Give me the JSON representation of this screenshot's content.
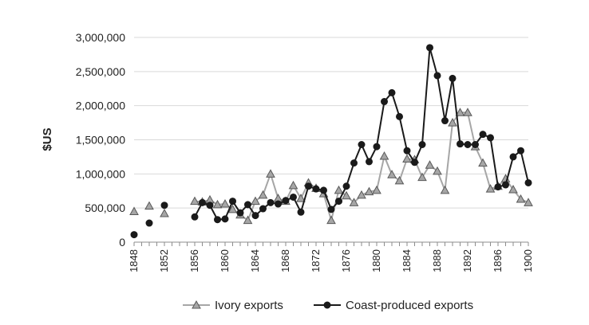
{
  "chart_data": {
    "type": "line",
    "title": "",
    "xlabel": "",
    "ylabel": "$US",
    "xlim": [
      1848,
      1900
    ],
    "ylim": [
      0,
      3000000
    ],
    "x_ticks": [
      1848,
      1852,
      1856,
      1860,
      1864,
      1868,
      1872,
      1876,
      1880,
      1884,
      1888,
      1892,
      1896,
      1900
    ],
    "y_ticks": [
      0,
      500000,
      1000000,
      1500000,
      2000000,
      2500000,
      3000000
    ],
    "y_tick_labels": [
      "0",
      "500,000",
      "1,000,000",
      "1,500,000",
      "2,000,000",
      "2,500,000",
      "3,000,000"
    ],
    "grid": "horizontal",
    "legend_position": "bottom",
    "series": [
      {
        "name": "Ivory exports",
        "color": "#a6a6a6",
        "marker": "triangle",
        "points": [
          [
            1848,
            450000
          ],
          [
            1850,
            530000
          ],
          [
            1852,
            420000
          ],
          [
            1856,
            600000
          ],
          [
            1857,
            590000
          ],
          [
            1858,
            620000
          ],
          [
            1859,
            550000
          ],
          [
            1860,
            560000
          ],
          [
            1861,
            480000
          ],
          [
            1862,
            400000
          ],
          [
            1863,
            320000
          ],
          [
            1864,
            600000
          ],
          [
            1865,
            690000
          ],
          [
            1866,
            1000000
          ],
          [
            1867,
            640000
          ],
          [
            1868,
            600000
          ],
          [
            1869,
            830000
          ],
          [
            1870,
            640000
          ],
          [
            1871,
            870000
          ],
          [
            1872,
            790000
          ],
          [
            1873,
            710000
          ],
          [
            1874,
            320000
          ],
          [
            1875,
            760000
          ],
          [
            1876,
            680000
          ],
          [
            1877,
            580000
          ],
          [
            1878,
            690000
          ],
          [
            1879,
            740000
          ],
          [
            1880,
            760000
          ],
          [
            1881,
            1260000
          ],
          [
            1882,
            990000
          ],
          [
            1883,
            900000
          ],
          [
            1884,
            1220000
          ],
          [
            1885,
            1210000
          ],
          [
            1886,
            950000
          ],
          [
            1887,
            1130000
          ],
          [
            1888,
            1040000
          ],
          [
            1889,
            760000
          ],
          [
            1890,
            1750000
          ],
          [
            1891,
            1900000
          ],
          [
            1892,
            1900000
          ],
          [
            1893,
            1400000
          ],
          [
            1894,
            1160000
          ],
          [
            1895,
            780000
          ],
          [
            1896,
            820000
          ],
          [
            1897,
            930000
          ],
          [
            1898,
            770000
          ],
          [
            1899,
            630000
          ],
          [
            1900,
            580000
          ]
        ]
      },
      {
        "name": "Coast-produced exports",
        "color": "#1a1a1a",
        "marker": "circle",
        "points": [
          [
            1848,
            110000
          ],
          [
            1850,
            280000
          ],
          [
            1852,
            540000
          ],
          [
            1856,
            370000
          ],
          [
            1857,
            580000
          ],
          [
            1858,
            540000
          ],
          [
            1859,
            330000
          ],
          [
            1860,
            340000
          ],
          [
            1861,
            600000
          ],
          [
            1862,
            430000
          ],
          [
            1863,
            550000
          ],
          [
            1864,
            390000
          ],
          [
            1865,
            490000
          ],
          [
            1866,
            580000
          ],
          [
            1867,
            560000
          ],
          [
            1868,
            610000
          ],
          [
            1869,
            660000
          ],
          [
            1870,
            440000
          ],
          [
            1871,
            820000
          ],
          [
            1872,
            780000
          ],
          [
            1873,
            760000
          ],
          [
            1874,
            480000
          ],
          [
            1875,
            600000
          ],
          [
            1876,
            820000
          ],
          [
            1877,
            1160000
          ],
          [
            1878,
            1430000
          ],
          [
            1879,
            1180000
          ],
          [
            1880,
            1400000
          ],
          [
            1881,
            2060000
          ],
          [
            1882,
            2190000
          ],
          [
            1883,
            1840000
          ],
          [
            1884,
            1340000
          ],
          [
            1885,
            1170000
          ],
          [
            1886,
            1430000
          ],
          [
            1887,
            2850000
          ],
          [
            1888,
            2440000
          ],
          [
            1889,
            1780000
          ],
          [
            1890,
            2400000
          ],
          [
            1891,
            1440000
          ],
          [
            1892,
            1430000
          ],
          [
            1893,
            1430000
          ],
          [
            1894,
            1580000
          ],
          [
            1895,
            1530000
          ],
          [
            1896,
            810000
          ],
          [
            1897,
            840000
          ],
          [
            1898,
            1250000
          ],
          [
            1899,
            1340000
          ],
          [
            1900,
            870000
          ]
        ]
      }
    ]
  }
}
